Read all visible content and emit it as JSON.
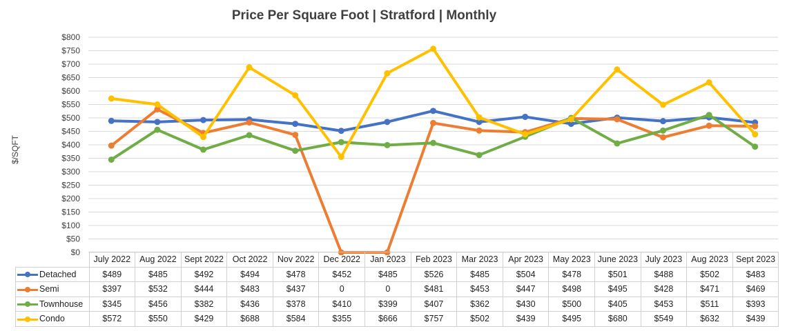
{
  "chart_data": {
    "type": "line",
    "title": "Price Per Square Foot | Stratford | Monthly",
    "xlabel": "",
    "ylabel": "$/SQFT",
    "ylim": [
      0,
      800
    ],
    "ytick_step": 50,
    "y_tick_labels": [
      "$0",
      "$50",
      "$100",
      "$150",
      "$200",
      "$250",
      "$300",
      "$350",
      "$400",
      "$450",
      "$500",
      "$550",
      "$600",
      "$650",
      "$700",
      "$750",
      "$800"
    ],
    "grid": true,
    "legend": "data-table",
    "categories": [
      "July 2022",
      "Aug 2022",
      "Sept 2022",
      "Oct 2022",
      "Nov 2022",
      "Dec 2022",
      "Jan 2023",
      "Feb 2023",
      "Mar 2023",
      "Apr 2023",
      "May 2023",
      "June 2023",
      "July 2023",
      "Aug 2023",
      "Sept 2023"
    ],
    "series": [
      {
        "name": "Detached",
        "color": "#4472C4",
        "values": [
          489,
          485,
          492,
          494,
          478,
          452,
          485,
          526,
          485,
          504,
          478,
          501,
          488,
          502,
          483
        ],
        "labels": [
          "$489",
          "$485",
          "$492",
          "$494",
          "$478",
          "$452",
          "$485",
          "$526",
          "$485",
          "$504",
          "$478",
          "$501",
          "$488",
          "$502",
          "$483"
        ]
      },
      {
        "name": "Semi",
        "color": "#ED7D31",
        "values": [
          397,
          532,
          444,
          483,
          437,
          0,
          0,
          481,
          453,
          447,
          498,
          495,
          428,
          471,
          469
        ],
        "labels": [
          "$397",
          "$532",
          "$444",
          "$483",
          "$437",
          "0",
          "0",
          "$481",
          "$453",
          "$447",
          "$498",
          "$495",
          "$428",
          "$471",
          "$469"
        ]
      },
      {
        "name": "Townhouse",
        "color": "#70AD47",
        "values": [
          345,
          456,
          382,
          436,
          378,
          410,
          399,
          407,
          362,
          430,
          500,
          405,
          453,
          511,
          393
        ],
        "labels": [
          "$345",
          "$456",
          "$382",
          "$436",
          "$378",
          "$410",
          "$399",
          "$407",
          "$362",
          "$430",
          "$500",
          "$405",
          "$453",
          "$511",
          "$393"
        ]
      },
      {
        "name": "Condo",
        "color": "#FFC000",
        "values": [
          572,
          550,
          429,
          688,
          584,
          355,
          666,
          757,
          502,
          439,
          495,
          680,
          549,
          632,
          439
        ],
        "labels": [
          "$572",
          "$550",
          "$429",
          "$688",
          "$584",
          "$355",
          "$666",
          "$757",
          "$502",
          "$439",
          "$495",
          "$680",
          "$549",
          "$632",
          "$439"
        ]
      }
    ]
  }
}
